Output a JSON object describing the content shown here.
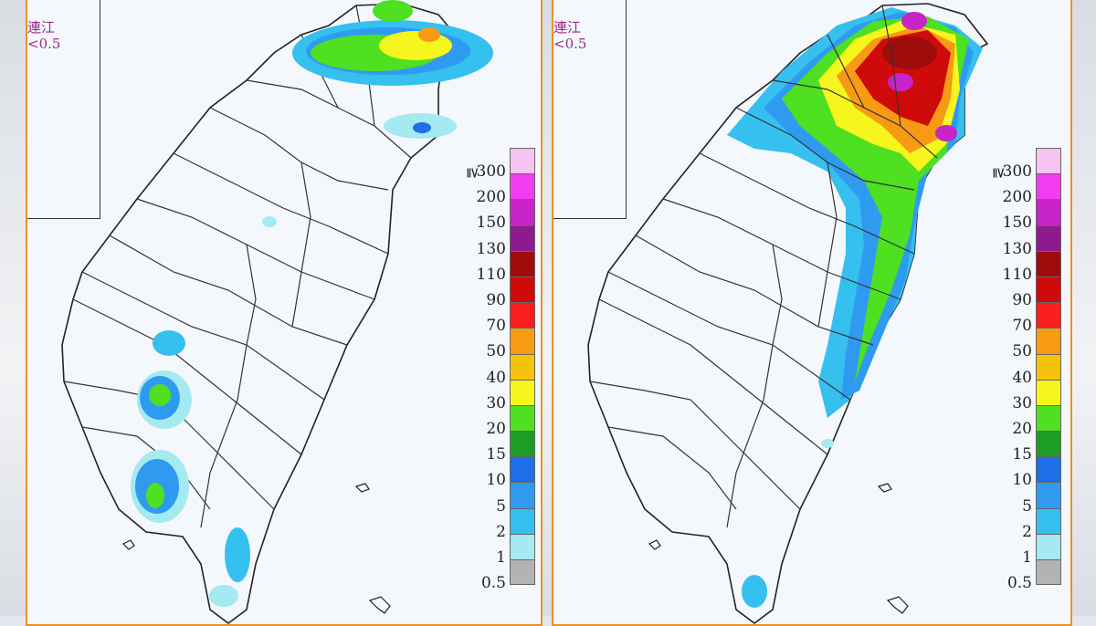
{
  "panels": [
    {
      "id": "left",
      "inset": {
        "name": "連江",
        "threshold": "<0.5"
      }
    },
    {
      "id": "right",
      "inset": {
        "name": "連江",
        "threshold": "<0.5"
      }
    }
  ],
  "legend": {
    "ge_symbol": "≧",
    "levels": [
      {
        "label": "300",
        "color": "#f7c3f0"
      },
      {
        "label": "200",
        "color": "#f23cf2"
      },
      {
        "label": "150",
        "color": "#c724c7"
      },
      {
        "label": "130",
        "color": "#8f1a8f"
      },
      {
        "label": "110",
        "color": "#9e0c0c"
      },
      {
        "label": "90",
        "color": "#cf0a0a"
      },
      {
        "label": "70",
        "color": "#fa1e1e"
      },
      {
        "label": "50",
        "color": "#f79a14"
      },
      {
        "label": "40",
        "color": "#f5c30c"
      },
      {
        "label": "30",
        "color": "#f7f51e"
      },
      {
        "label": "20",
        "color": "#4ee021"
      },
      {
        "label": "15",
        "color": "#1c9e24"
      },
      {
        "label": "10",
        "color": "#1e6ee8"
      },
      {
        "label": "5",
        "color": "#2f9bf0"
      },
      {
        "label": "2",
        "color": "#35c0ef"
      },
      {
        "label": "1",
        "color": "#a4eaf0"
      },
      {
        "label": "0.5",
        "color": "#b3b3b3"
      }
    ]
  }
}
